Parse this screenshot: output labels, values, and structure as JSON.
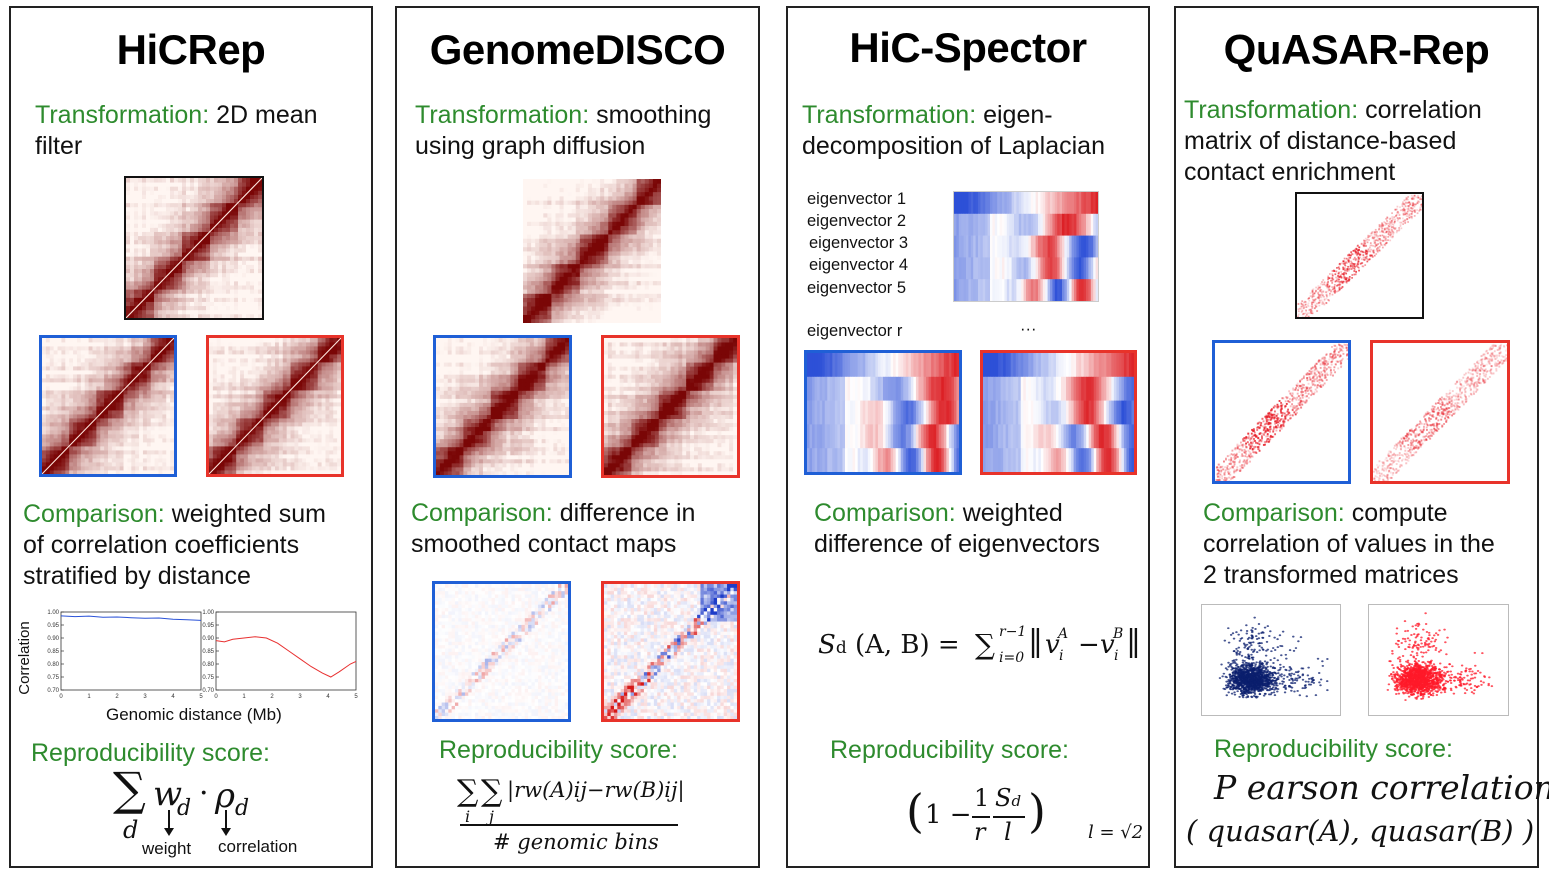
{
  "panels": {
    "hicrep": {
      "title": "HiCRep",
      "transformation_label": "Transformation:",
      "transformation_text": [
        "2D mean",
        "filter"
      ],
      "comparison_label": "Comparison:",
      "comparison_text": [
        "weighted sum",
        "of correlation coefficients",
        "stratified by distance"
      ],
      "plot_ylabel": "Correlation",
      "plot_yticks": [
        "1.00",
        "0.95",
        "0.90",
        "0.85",
        "0.80",
        "0.75",
        "0.70"
      ],
      "plot_xticks": [
        "0",
        "1",
        "2",
        "3",
        "4",
        "5"
      ],
      "plot_xlabel": "Genomic distance (Mb)",
      "score_label": "Reproducibility score:",
      "formula_sum_index": "d",
      "formula_w": "w",
      "formula_rho": "ρ",
      "formula_dot": "·",
      "arrow_label_weight": "weight",
      "arrow_label_corr": "correlation"
    },
    "genomedisco": {
      "title": "GenomeDISCO",
      "transformation_label": "Transformation:",
      "transformation_text": [
        "smoothing",
        "using graph diffusion"
      ],
      "comparison_label": "Comparison:",
      "comparison_text": [
        "difference in",
        "smoothed contact maps"
      ],
      "score_label": "Reproducibility score:",
      "formula_numerator": "|rw(A)ij−rw(B)ij|",
      "formula_sum_i": "i",
      "formula_sum_j": "j",
      "formula_denominator": "# genomic bins"
    },
    "hicspector": {
      "title": "HiC-Spector",
      "transformation_label": "Transformation:",
      "transformation_text": [
        "eigen-",
        "decomposition of Laplacian"
      ],
      "eigen_labels": [
        "eigenvector 1",
        "eigenvector 2",
        "eigenvector 3",
        "eigenvector 4",
        "eigenvector 5"
      ],
      "eigen_r_label": "eigenvector r",
      "ellipsis": "···",
      "comparison_label": "Comparison:",
      "comparison_text": [
        "weighted",
        "difference of eigenvectors"
      ],
      "formula_lhs": "S",
      "formula_lhs_sub": "d",
      "formula_args": "(A, B) =",
      "formula_sum_upper": "r−1",
      "formula_sum_lower": "i=0",
      "formula_body_a": "v",
      "formula_sup_a": "A",
      "formula_sub_i": "i",
      "formula_minus": "−",
      "formula_sup_b": "B",
      "score_label": "Reproducibility score:",
      "score_one": "1 −",
      "score_frac1_num": "1",
      "score_frac1_den": "r",
      "score_frac2_num": "S",
      "score_frac2_sub": "d",
      "score_frac2_den": "l",
      "score_l_def": "l = √2"
    },
    "quasar": {
      "title": "QuASAR-Rep",
      "transformation_label": "Transformation:",
      "transformation_text": [
        "correlation",
        "matrix of distance-based",
        "contact enrichment"
      ],
      "comparison_label": "Comparison:",
      "comparison_text": [
        "compute",
        "correlation of values in the",
        "2 transformed matrices"
      ],
      "score_label": "Reproducibility score:",
      "score_line1": "P earson correlation",
      "score_line2": "( quasar(A), quasar(B) )"
    }
  },
  "colors": {
    "green": "#2e8b2e",
    "blue_frame": "#1f5fd6",
    "red_frame": "#e8332a",
    "heatmap_dark": "#8b0a0a",
    "eig_blue": "#3a5fd8",
    "eig_red": "#e0262a",
    "scatter_navy": "#0b1f6e",
    "scatter_red": "#ff1a2a"
  }
}
